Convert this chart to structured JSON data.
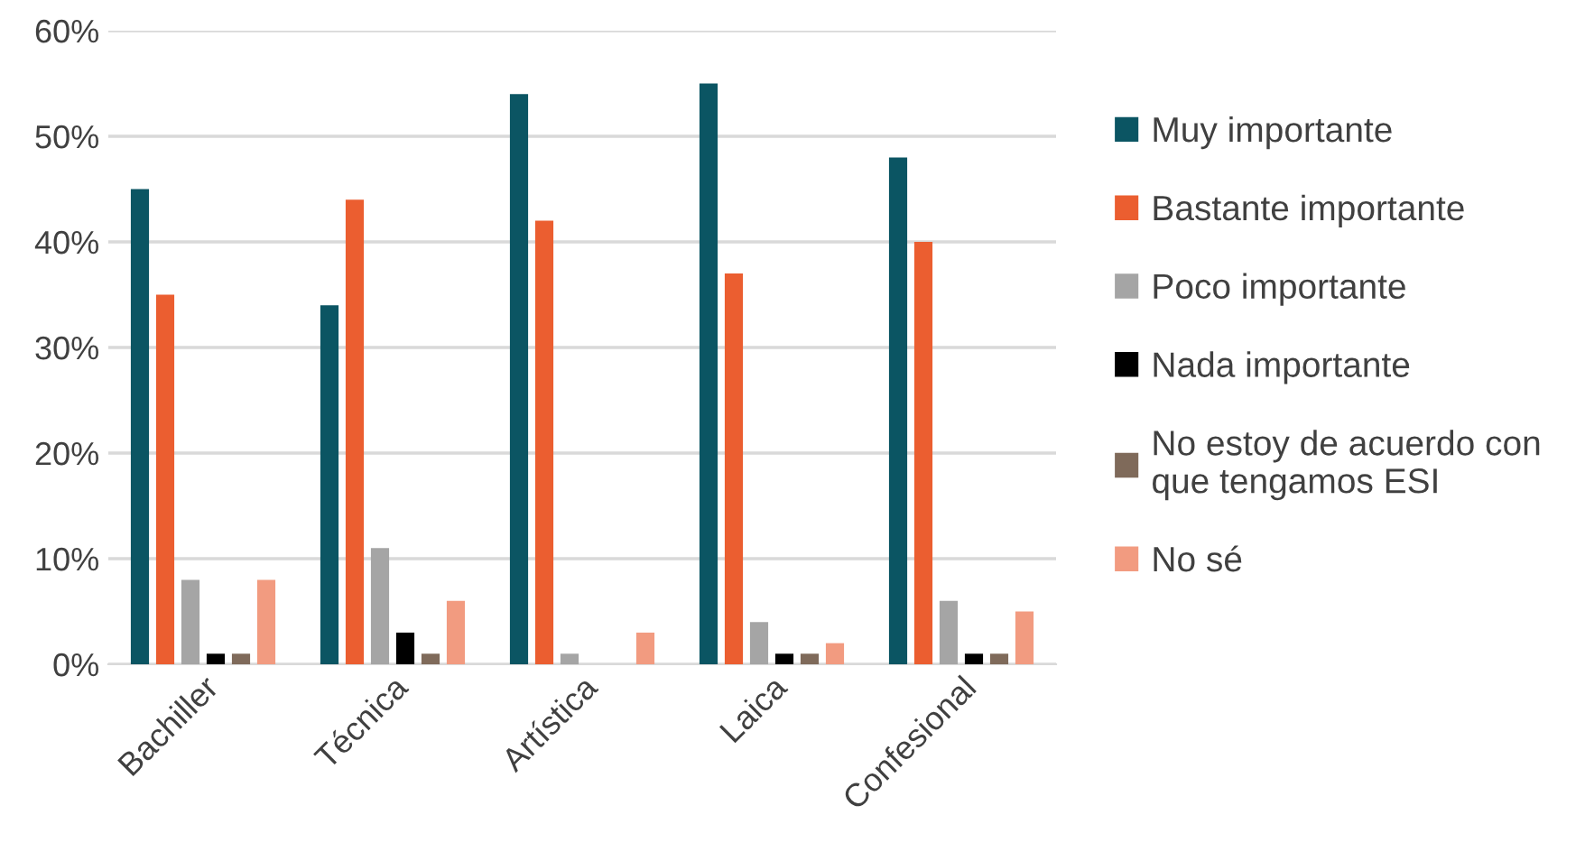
{
  "chart_data": {
    "type": "bar",
    "categories": [
      "Bachiller",
      "Técnica",
      "Artística",
      "Laica",
      "Confesional"
    ],
    "series": [
      {
        "name": "Muy importante",
        "color": "#0b5563",
        "values": [
          45,
          34,
          54,
          55,
          48
        ]
      },
      {
        "name": "Bastante importante",
        "color": "#eb5e30",
        "values": [
          35,
          44,
          42,
          37,
          40
        ]
      },
      {
        "name": "Poco importante",
        "color": "#a5a5a5",
        "values": [
          8,
          11,
          1,
          4,
          6
        ]
      },
      {
        "name": "Nada importante",
        "color": "#000000",
        "values": [
          1,
          3,
          0,
          1,
          1
        ]
      },
      {
        "name": "No estoy de acuerdo con\nque tengamos ESI",
        "color": "#7f6a5a",
        "values": [
          1,
          1,
          0,
          1,
          1
        ]
      },
      {
        "name": "No sé",
        "color": "#f29b80",
        "values": [
          8,
          6,
          3,
          2,
          5
        ]
      }
    ],
    "ylim": [
      0,
      60
    ],
    "yticks": [
      {
        "value": 0,
        "label": "0%"
      },
      {
        "value": 10,
        "label": "10%"
      },
      {
        "value": 20,
        "label": "20%"
      },
      {
        "value": 30,
        "label": "30%"
      },
      {
        "value": 40,
        "label": "40%"
      },
      {
        "value": 50,
        "label": "50%"
      },
      {
        "value": 60,
        "label": "60%"
      }
    ],
    "grid": "y",
    "legend": "right"
  }
}
